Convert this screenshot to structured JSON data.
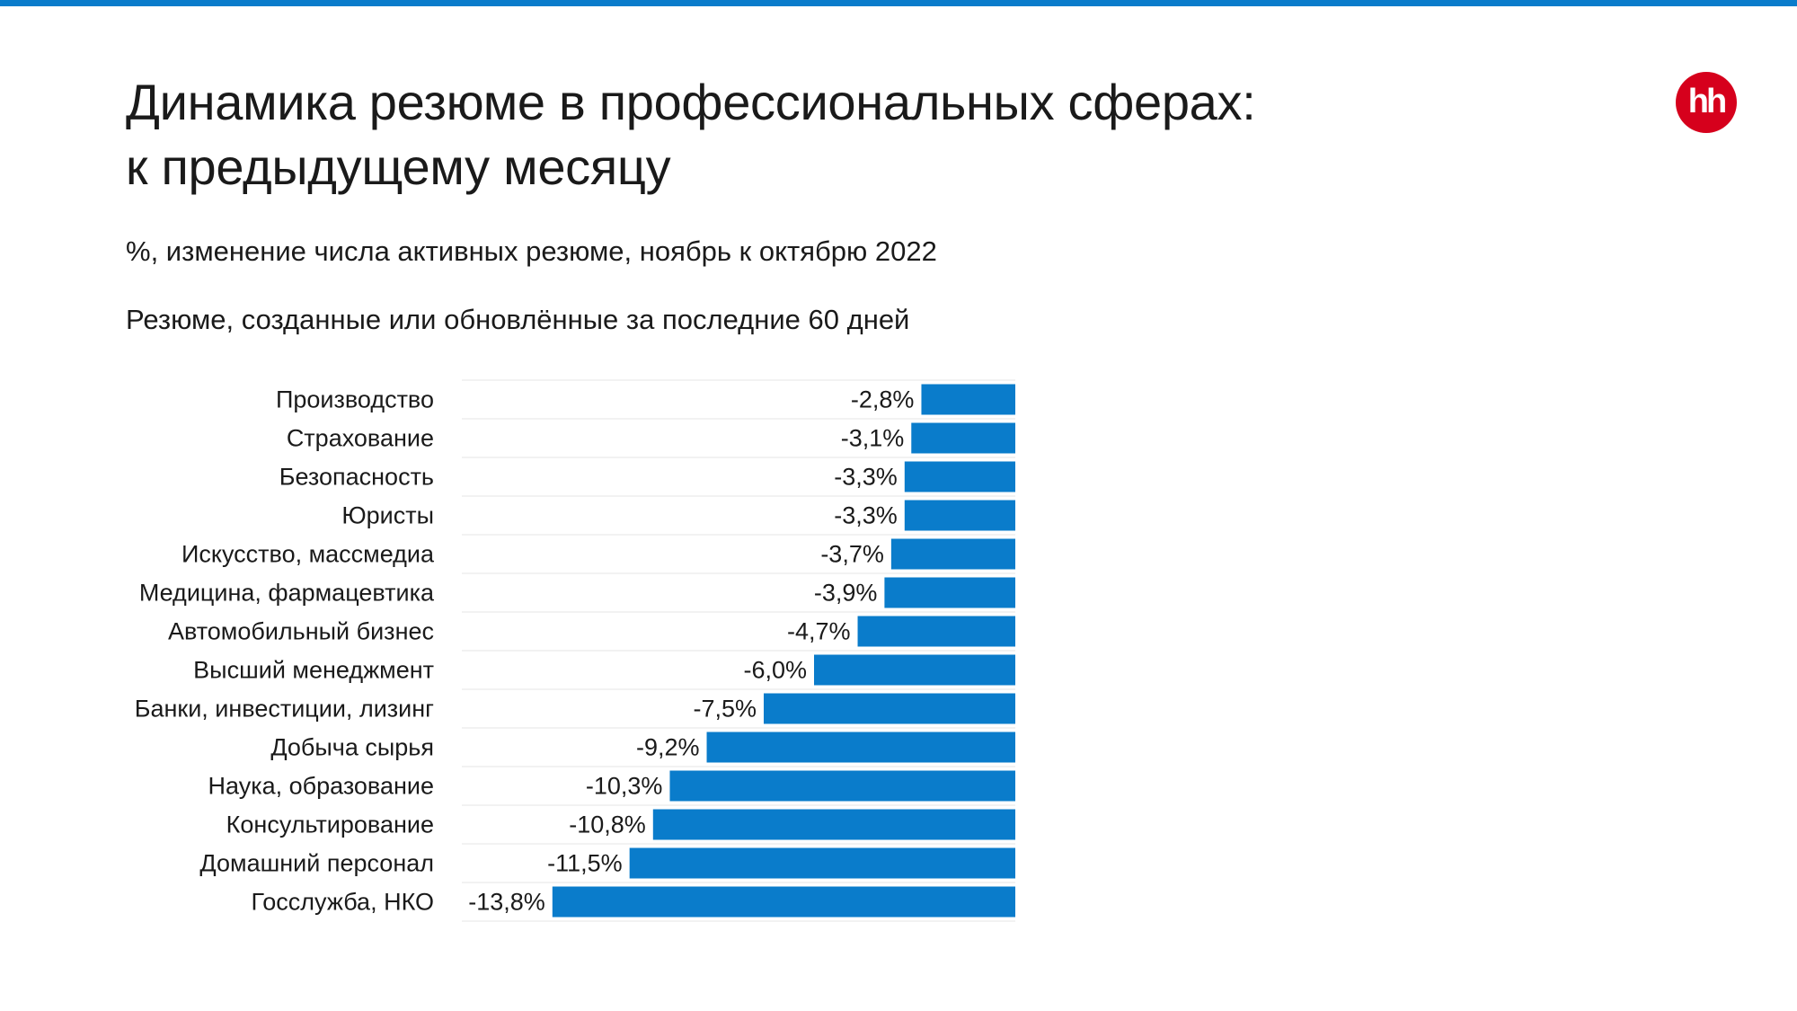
{
  "header": {
    "title_line1": "Динамика резюме в профессиональных сферах:",
    "title_line2": "к предыдущему месяцу",
    "subtitle": "%, изменение числа активных резюме, ноябрь к октябрю 2022",
    "note": "Резюме, созданные или обновлённые за последние 60 дней"
  },
  "logo": {
    "text": "hh",
    "color": "#d6001c"
  },
  "colors": {
    "accent": "#0a7ccb",
    "bar": "#0a7ccb",
    "gridline": "#e6e6e6"
  },
  "chart_data": {
    "type": "bar",
    "orientation": "horizontal",
    "categories": [
      "Производство",
      "Страхование",
      "Безопасность",
      "Юристы",
      "Искусство, массмедиа",
      "Медицина, фармацевтика",
      "Автомобильный бизнес",
      "Высший менеджмент",
      "Банки, инвестиции, лизинг",
      "Добыча сырья",
      "Наука, образование",
      "Консультирование",
      "Домашний персонал",
      "Госслужба, НКО"
    ],
    "values": [
      -2.8,
      -3.1,
      -3.3,
      -3.3,
      -3.7,
      -3.9,
      -4.7,
      -6.0,
      -7.5,
      -9.2,
      -10.3,
      -10.8,
      -11.5,
      -13.8
    ],
    "value_labels": [
      "-2,8%",
      "-3,1%",
      "-3,3%",
      "-3,3%",
      "-3,7%",
      "-3,9%",
      "-4,7%",
      "-6,0%",
      "-7,5%",
      "-9,2%",
      "-10,3%",
      "-10,8%",
      "-11,5%",
      "-13,8%"
    ],
    "xlim": [
      -16.5,
      0
    ],
    "grid": "horizontal row separators",
    "legend": "none"
  }
}
